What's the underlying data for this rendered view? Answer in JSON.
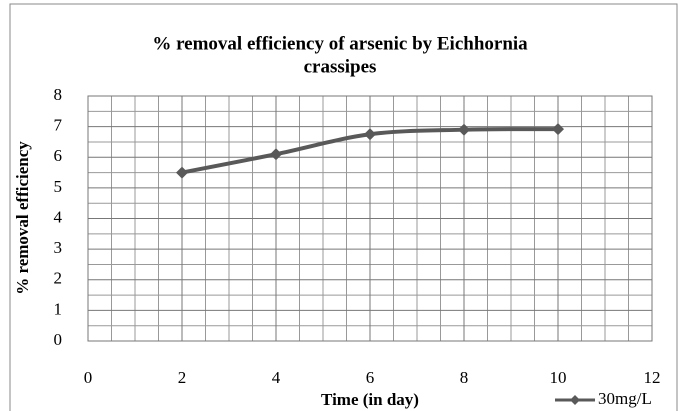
{
  "chart_data": {
    "type": "line",
    "title": "% removal efficiency of arsenic by Eichhornia",
    "subtitle": "crassipes",
    "x_label": "Time (in day)",
    "y_label": "% removal efficiency",
    "x": [
      2,
      4,
      6,
      8,
      10
    ],
    "series": [
      {
        "name": "30mg/L",
        "color": "#595959",
        "values": [
          5.5,
          6.1,
          6.75,
          6.9,
          6.92
        ]
      }
    ],
    "xlim": [
      0,
      12
    ],
    "xticks": [
      0,
      2,
      4,
      6,
      8,
      10,
      12
    ],
    "ylim": [
      0,
      8
    ],
    "yticks": [
      0,
      1,
      2,
      3,
      4,
      5,
      6,
      7,
      8
    ],
    "grid": true,
    "legend": "bottom-right"
  }
}
